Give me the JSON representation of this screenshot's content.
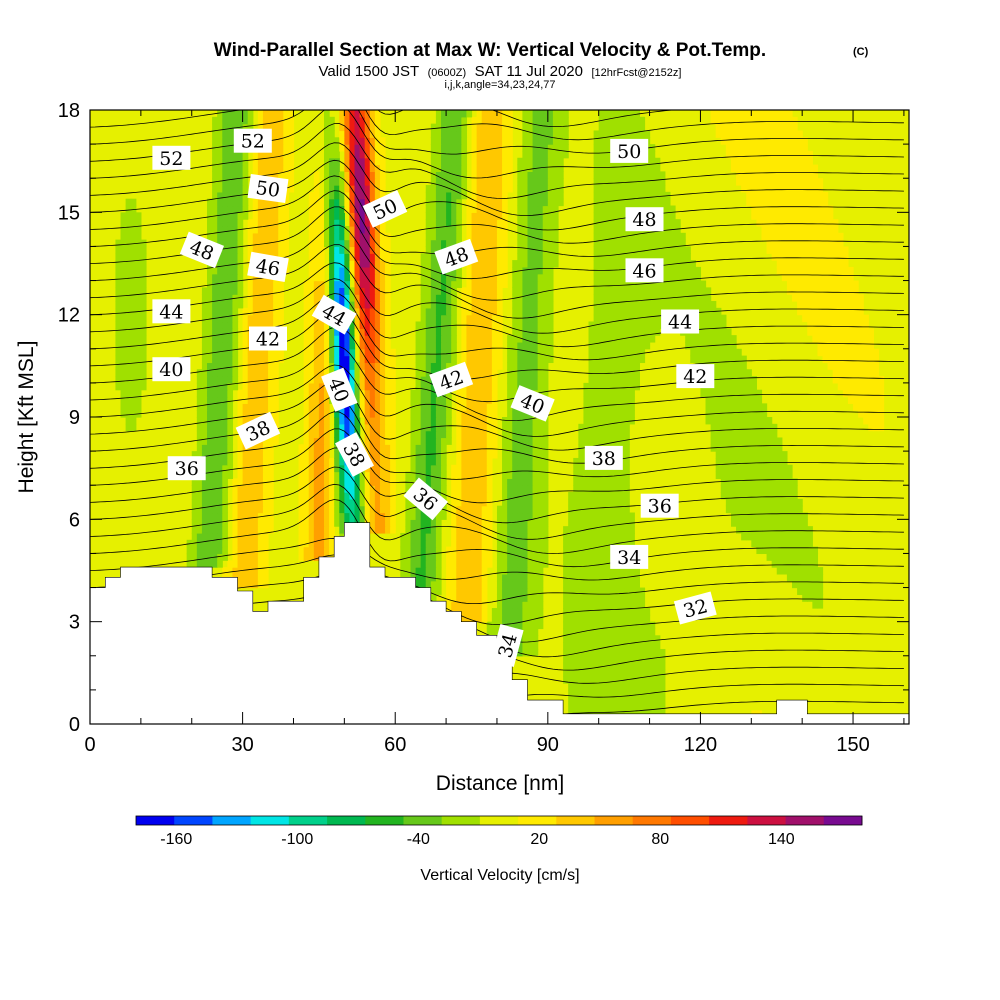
{
  "header": {
    "title": "Wind-Parallel Section at Max W: Vertical Velocity & Pot.Temp.",
    "title_tag": "(C)",
    "valid_prefix": "Valid 1500 JST",
    "valid_utc": "(0600Z)",
    "valid_date": "SAT 11 Jul 2020",
    "forecast_info": "[12hrFcst@2152z]",
    "grid_info": "i,j,k,angle=34,23,24,77"
  },
  "chart_data": {
    "type": "heatmap",
    "xlabel": "Distance [nm]",
    "ylabel": "Height [Kft MSL]",
    "xlim": [
      0,
      161
    ],
    "ylim": [
      0,
      18
    ],
    "x_ticks": [
      0,
      30,
      60,
      90,
      120,
      150
    ],
    "y_ticks": [
      0,
      3,
      6,
      9,
      12,
      15,
      18
    ],
    "terrain": [
      [
        0,
        4.0
      ],
      [
        3,
        4.0
      ],
      [
        3,
        4.3
      ],
      [
        6,
        4.3
      ],
      [
        6,
        4.6
      ],
      [
        24,
        4.6
      ],
      [
        24,
        4.3
      ],
      [
        29,
        4.3
      ],
      [
        29,
        3.9
      ],
      [
        32,
        3.9
      ],
      [
        32,
        3.3
      ],
      [
        35,
        3.3
      ],
      [
        35,
        3.6
      ],
      [
        42,
        3.6
      ],
      [
        42,
        4.3
      ],
      [
        45,
        4.3
      ],
      [
        45,
        4.9
      ],
      [
        48,
        4.9
      ],
      [
        48,
        5.5
      ],
      [
        50,
        5.5
      ],
      [
        50,
        5.9
      ],
      [
        55,
        5.9
      ],
      [
        55,
        4.6
      ],
      [
        58,
        4.6
      ],
      [
        58,
        4.3
      ],
      [
        64,
        4.3
      ],
      [
        64,
        4.0
      ],
      [
        67,
        4.0
      ],
      [
        67,
        3.6
      ],
      [
        70,
        3.6
      ],
      [
        70,
        3.3
      ],
      [
        73,
        3.3
      ],
      [
        73,
        3.0
      ],
      [
        76,
        3.0
      ],
      [
        76,
        2.6
      ],
      [
        80,
        2.6
      ],
      [
        80,
        2.0
      ],
      [
        83,
        2.0
      ],
      [
        83,
        1.3
      ],
      [
        86,
        1.3
      ],
      [
        86,
        0.7
      ],
      [
        93,
        0.7
      ],
      [
        93,
        0.3
      ],
      [
        135,
        0.3
      ],
      [
        135,
        0.7
      ],
      [
        141,
        0.7
      ],
      [
        141,
        0.3
      ],
      [
        161,
        0.3
      ]
    ],
    "theta_contour_labels": [
      {
        "text": "52",
        "x": 16,
        "y": 16.6,
        "angle": 0
      },
      {
        "text": "52",
        "x": 32,
        "y": 17.1,
        "angle": 0
      },
      {
        "text": "50",
        "x": 35,
        "y": 15.7,
        "angle": 8
      },
      {
        "text": "50",
        "x": 58,
        "y": 15.1,
        "angle": -25
      },
      {
        "text": "50",
        "x": 106,
        "y": 16.8,
        "angle": 0
      },
      {
        "text": "48",
        "x": 22,
        "y": 13.9,
        "angle": 22
      },
      {
        "text": "48",
        "x": 72,
        "y": 13.7,
        "angle": -20
      },
      {
        "text": "48",
        "x": 109,
        "y": 14.8,
        "angle": 0
      },
      {
        "text": "46",
        "x": 35,
        "y": 13.4,
        "angle": 10
      },
      {
        "text": "46",
        "x": 109,
        "y": 13.3,
        "angle": 0
      },
      {
        "text": "44",
        "x": 16,
        "y": 12.1,
        "angle": 0
      },
      {
        "text": "44",
        "x": 48,
        "y": 12.0,
        "angle": 30
      },
      {
        "text": "44",
        "x": 116,
        "y": 11.8,
        "angle": 0
      },
      {
        "text": "42",
        "x": 35,
        "y": 11.3,
        "angle": 0
      },
      {
        "text": "42",
        "x": 71,
        "y": 10.1,
        "angle": -20
      },
      {
        "text": "42",
        "x": 119,
        "y": 10.2,
        "angle": 0
      },
      {
        "text": "40",
        "x": 16,
        "y": 10.4,
        "angle": 0
      },
      {
        "text": "40",
        "x": 49,
        "y": 9.8,
        "angle": 68
      },
      {
        "text": "40",
        "x": 87,
        "y": 9.4,
        "angle": 22
      },
      {
        "text": "38",
        "x": 33,
        "y": 8.6,
        "angle": -25
      },
      {
        "text": "38",
        "x": 52,
        "y": 7.9,
        "angle": 62
      },
      {
        "text": "38",
        "x": 101,
        "y": 7.8,
        "angle": 0
      },
      {
        "text": "36",
        "x": 19,
        "y": 7.5,
        "angle": 0
      },
      {
        "text": "36",
        "x": 66,
        "y": 6.6,
        "angle": 40
      },
      {
        "text": "36",
        "x": 112,
        "y": 6.4,
        "angle": 0
      },
      {
        "text": "34",
        "x": 106,
        "y": 4.9,
        "angle": 0
      },
      {
        "text": "34",
        "x": 82,
        "y": 2.3,
        "angle": -75
      },
      {
        "text": "32",
        "x": 119,
        "y": 3.4,
        "angle": -15
      }
    ],
    "colorbar": {
      "title": "Vertical Velocity [cm/s]",
      "ticks": [
        "-160",
        "-100",
        "-40",
        "20",
        "80",
        "140"
      ],
      "colors": [
        "#0000f0",
        "#0045ff",
        "#00a5ff",
        "#00e5e5",
        "#00d08a",
        "#00b850",
        "#22b420",
        "#66c81a",
        "#a0e000",
        "#e6f000",
        "#ffea00",
        "#ffc800",
        "#ff9f00",
        "#ff7800",
        "#ff4e00",
        "#ee1a10",
        "#cc1040",
        "#a0106a",
        "#780a90"
      ]
    }
  }
}
